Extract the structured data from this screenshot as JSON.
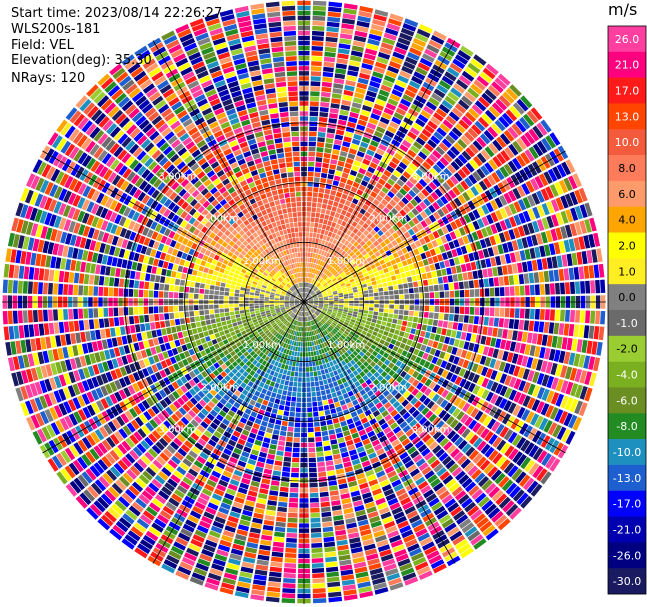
{
  "header": {
    "start_time": "Start time: 2023/08/14 22:26:27",
    "instrument": "WLS200s-181",
    "field": "Field: VEL",
    "elevation": "Elevation(deg): 35.30",
    "nrays": "NRays: 120"
  },
  "chart_data": {
    "type": "heatmap",
    "projection": "polar",
    "field": "VEL",
    "n_rays": 120,
    "range_rings_km": [
      1.0,
      2.0,
      3.0
    ],
    "range_ring_labels": [
      "1.00km",
      "2.00km",
      "3.00km"
    ],
    "azimuth_spokes_deg": [
      0,
      30,
      60,
      90,
      120,
      150,
      180,
      210,
      240,
      270,
      300,
      330
    ],
    "colorbar": {
      "unit": "m/s",
      "ticks": [
        "26.0",
        "21.0",
        "17.0",
        "13.0",
        "10.0",
        "8.0",
        "6.0",
        "4.0",
        "2.0",
        "1.0",
        "0.0",
        "-1.0",
        "-2.0",
        "-4.0",
        "-6.0",
        "-8.0",
        "-10.0",
        "-13.0",
        "-17.0",
        "-21.0",
        "-26.0",
        "-30.0"
      ],
      "bins": [
        {
          "lo": 26,
          "hi": 30,
          "color": "#ff3fa0"
        },
        {
          "lo": 21,
          "hi": 26,
          "color": "#ff007f"
        },
        {
          "lo": 17,
          "hi": 21,
          "color": "#ff1a1a"
        },
        {
          "lo": 13,
          "hi": 17,
          "color": "#ff4500"
        },
        {
          "lo": 10,
          "hi": 13,
          "color": "#f45a3c"
        },
        {
          "lo": 8,
          "hi": 10,
          "color": "#ff7c5a"
        },
        {
          "lo": 6,
          "hi": 8,
          "color": "#ff9a6a"
        },
        {
          "lo": 4,
          "hi": 6,
          "color": "#ffa500"
        },
        {
          "lo": 2,
          "hi": 4,
          "color": "#ffff00"
        },
        {
          "lo": 1,
          "hi": 2,
          "color": "#ffee22"
        },
        {
          "lo": 0,
          "hi": 1,
          "color": "#808080"
        },
        {
          "lo": -1,
          "hi": 0,
          "color": "#6a6a6a"
        },
        {
          "lo": -2,
          "hi": -1,
          "color": "#9acd32"
        },
        {
          "lo": -4,
          "hi": -2,
          "color": "#7ab020"
        },
        {
          "lo": -6,
          "hi": -4,
          "color": "#6b8e23"
        },
        {
          "lo": -8,
          "hi": -6,
          "color": "#228b22"
        },
        {
          "lo": -10,
          "hi": -8,
          "color": "#1e90c0"
        },
        {
          "lo": -13,
          "hi": -10,
          "color": "#1e5fd0"
        },
        {
          "lo": -17,
          "hi": -13,
          "color": "#0000ff"
        },
        {
          "lo": -21,
          "hi": -17,
          "color": "#0000b0"
        },
        {
          "lo": -26,
          "hi": -21,
          "color": "#000080"
        },
        {
          "lo": -30,
          "hi": -26,
          "color": "#1a1a60"
        }
      ]
    },
    "pattern": {
      "near_field": "positive velocities (2 to 17 m/s) to the north, negative (-1 to -8 m/s) to the south",
      "far_field": "noisy, random values spanning full colour range beyond ~2.5 km"
    }
  }
}
